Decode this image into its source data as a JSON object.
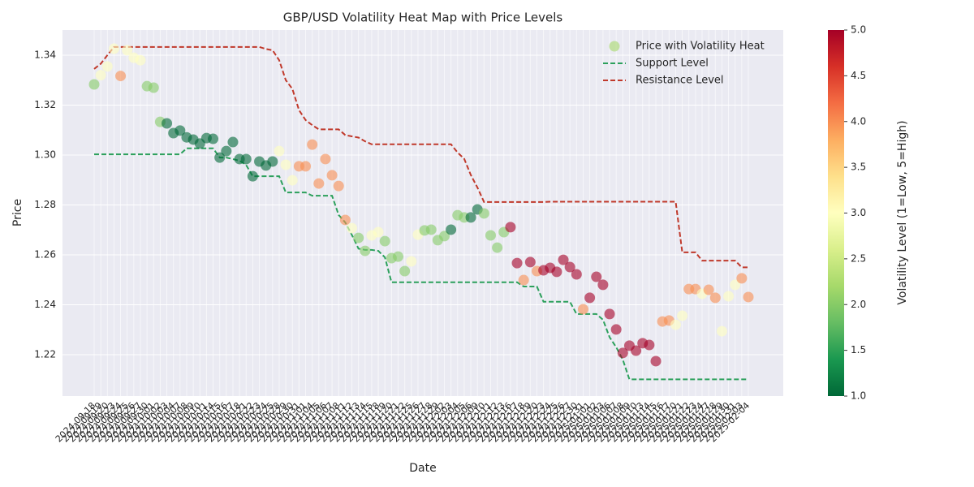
{
  "chart_data": {
    "type": "scatter",
    "title": "GBP/USD Volatility Heat Map with Price Levels",
    "x_label": "Date",
    "y_label": "Price",
    "categories": [
      "2024-09-18",
      "2024-09-19",
      "2024-09-20",
      "2024-09-23",
      "2024-09-24",
      "2024-09-25",
      "2024-09-26",
      "2024-09-27",
      "2024-09-30",
      "2024-10-01",
      "2024-10-02",
      "2024-10-03",
      "2024-10-04",
      "2024-10-07",
      "2024-10-08",
      "2024-10-09",
      "2024-10-10",
      "2024-10-11",
      "2024-10-14",
      "2024-10-15",
      "2024-10-16",
      "2024-10-17",
      "2024-10-18",
      "2024-10-21",
      "2024-10-22",
      "2024-10-23",
      "2024-10-24",
      "2024-10-25",
      "2024-10-28",
      "2024-10-29",
      "2024-10-30",
      "2024-10-31",
      "2024-11-01",
      "2024-11-04",
      "2024-11-05",
      "2024-11-06",
      "2024-11-07",
      "2024-11-08",
      "2024-11-11",
      "2024-11-12",
      "2024-11-13",
      "2024-11-14",
      "2024-11-15",
      "2024-11-18",
      "2024-11-19",
      "2024-11-20",
      "2024-11-21",
      "2024-11-22",
      "2024-11-25",
      "2024-11-26",
      "2024-11-27",
      "2024-11-28",
      "2024-11-29",
      "2024-12-02",
      "2024-12-03",
      "2024-12-04",
      "2024-12-05",
      "2024-12-06",
      "2024-12-09",
      "2024-12-10",
      "2024-12-11",
      "2024-12-12",
      "2024-12-13",
      "2024-12-16",
      "2024-12-17",
      "2024-12-18",
      "2024-12-19",
      "2024-12-20",
      "2024-12-23",
      "2024-12-24",
      "2024-12-25",
      "2024-12-26",
      "2024-12-27",
      "2024-12-30",
      "2024-12-31",
      "2025-01-01",
      "2025-01-02",
      "2025-01-03",
      "2025-01-06",
      "2025-01-07",
      "2025-01-08",
      "2025-01-09",
      "2025-01-10",
      "2025-01-13",
      "2025-01-14",
      "2025-01-15",
      "2025-01-16",
      "2025-01-17",
      "2025-01-20",
      "2025-01-21",
      "2025-01-22",
      "2025-01-23",
      "2025-01-24",
      "2025-01-27",
      "2025-01-28",
      "2025-01-29",
      "2025-01-30",
      "2025-01-31",
      "2025-02-03",
      "2025-02-04"
    ],
    "series": [
      {
        "name": "Price with Volatility Heat",
        "type": "scatter",
        "color": "#a6d96a",
        "values": [
          1.3283,
          1.332,
          1.3355,
          1.3426,
          1.3317,
          1.342,
          1.339,
          1.338,
          1.3276,
          1.327,
          1.3133,
          1.3127,
          1.3088,
          1.3098,
          1.3071,
          1.3062,
          1.3046,
          1.3068,
          1.3065,
          1.299,
          1.3016,
          1.3052,
          1.2984,
          1.2984,
          1.2915,
          1.2974,
          1.2958,
          1.2974,
          1.3016,
          1.2961,
          1.2899,
          1.2955,
          1.2955,
          1.3042,
          1.2886,
          1.2984,
          1.2919,
          1.2876,
          1.274,
          1.2707,
          1.2668,
          1.2616,
          1.2678,
          1.2691,
          1.2655,
          1.2587,
          1.2593,
          1.2535,
          1.2574,
          1.2681,
          1.2698,
          1.2701,
          1.2659,
          1.2675,
          1.2701,
          1.2759,
          1.275,
          1.275,
          1.2782,
          1.2766,
          1.2678,
          1.2629,
          1.2691,
          1.2711,
          1.2567,
          1.2499,
          1.2571,
          1.2535,
          1.2538,
          1.2548,
          1.2532,
          1.258,
          1.2551,
          1.2522,
          1.2382,
          1.2428,
          1.2512,
          1.248,
          1.2363,
          1.2301,
          1.2207,
          1.2236,
          1.2216,
          1.2246,
          1.2239,
          1.2174,
          1.2333,
          1.2337,
          1.232,
          1.2356,
          1.2463,
          1.2463,
          1.2444,
          1.246,
          1.2428,
          1.2294,
          1.2434,
          1.248,
          1.2506,
          1.2431
        ],
        "volatility": [
          2,
          3,
          3,
          3,
          4,
          3,
          3,
          3,
          2,
          2,
          2,
          1,
          1,
          1,
          1,
          1,
          1,
          1,
          1,
          1,
          1,
          1,
          1,
          1,
          1,
          1,
          1,
          1,
          3,
          3,
          3,
          4,
          4,
          4,
          4,
          4,
          4,
          4,
          4,
          3,
          2,
          2,
          3,
          3,
          2,
          2,
          2,
          2,
          3,
          3,
          2,
          2,
          2,
          2,
          1,
          2,
          2,
          1,
          1,
          2,
          2,
          2,
          2,
          5,
          5,
          4,
          5,
          4,
          5,
          5,
          5,
          5,
          5,
          5,
          4,
          5,
          5,
          5,
          5,
          5,
          5,
          5,
          5,
          5,
          5,
          5,
          4,
          4,
          3,
          3,
          4,
          4,
          3,
          4,
          4,
          3,
          3,
          3,
          4,
          4
        ]
      },
      {
        "name": "Support Level",
        "type": "line",
        "color": "#2ca05c",
        "dashed": true,
        "values": [
          1.3003,
          1.3003,
          1.3003,
          1.3003,
          1.3003,
          1.3003,
          1.3003,
          1.3003,
          1.3003,
          1.3003,
          1.3003,
          1.3003,
          1.3003,
          1.3003,
          1.3027,
          1.3027,
          1.3027,
          1.3027,
          1.3027,
          1.299,
          1.299,
          1.2984,
          1.2977,
          1.296,
          1.2915,
          1.2915,
          1.2915,
          1.2915,
          1.2915,
          1.285,
          1.285,
          1.285,
          1.285,
          1.2837,
          1.2837,
          1.2837,
          1.2837,
          1.276,
          1.273,
          1.268,
          1.2625,
          1.262,
          1.262,
          1.2616,
          1.259,
          1.249,
          1.249,
          1.249,
          1.249,
          1.249,
          1.249,
          1.249,
          1.249,
          1.249,
          1.249,
          1.249,
          1.249,
          1.249,
          1.249,
          1.249,
          1.249,
          1.249,
          1.249,
          1.249,
          1.249,
          1.2473,
          1.2473,
          1.2473,
          1.2412,
          1.2412,
          1.2412,
          1.2412,
          1.2412,
          1.2363,
          1.2363,
          1.2363,
          1.2363,
          1.234,
          1.227,
          1.223,
          1.218,
          1.2101,
          1.2101,
          1.2101,
          1.2101,
          1.2101,
          1.2101,
          1.2101,
          1.2101,
          1.2101,
          1.2101,
          1.2101,
          1.2101,
          1.2101,
          1.2101,
          1.2101,
          1.2101,
          1.2101,
          1.2101,
          1.2101
        ]
      },
      {
        "name": "Resistance Level",
        "type": "line",
        "color": "#c0392b",
        "dashed": true,
        "values": [
          1.3345,
          1.3366,
          1.34,
          1.3433,
          1.3433,
          1.3433,
          1.3433,
          1.3433,
          1.3433,
          1.3433,
          1.3433,
          1.3433,
          1.3433,
          1.3433,
          1.3433,
          1.3433,
          1.3433,
          1.3433,
          1.3433,
          1.3433,
          1.3433,
          1.3433,
          1.3433,
          1.3433,
          1.3433,
          1.3433,
          1.3425,
          1.342,
          1.338,
          1.33,
          1.3265,
          1.318,
          1.314,
          1.312,
          1.3103,
          1.3103,
          1.3103,
          1.3103,
          1.308,
          1.3075,
          1.307,
          1.3055,
          1.3043,
          1.3043,
          1.3043,
          1.3043,
          1.3043,
          1.3043,
          1.3043,
          1.3043,
          1.3043,
          1.3043,
          1.3043,
          1.3043,
          1.3043,
          1.301,
          1.2985,
          1.292,
          1.287,
          1.2812,
          1.2812,
          1.2812,
          1.2812,
          1.2812,
          1.2812,
          1.2812,
          1.2812,
          1.2812,
          1.2812,
          1.2813,
          1.2813,
          1.2813,
          1.2813,
          1.2813,
          1.2813,
          1.2813,
          1.2813,
          1.2813,
          1.2813,
          1.2813,
          1.2813,
          1.2813,
          1.2813,
          1.2813,
          1.2813,
          1.2813,
          1.2813,
          1.2813,
          1.2813,
          1.261,
          1.261,
          1.261,
          1.2577,
          1.2577,
          1.2577,
          1.2577,
          1.2577,
          1.2577,
          1.255,
          1.255
        ]
      }
    ],
    "ylim": [
      1.2034,
      1.3501
    ],
    "yticks": [
      1.22,
      1.24,
      1.26,
      1.28,
      {
        "value": 1.3,
        "label": "1.30"
      },
      1.32,
      1.34
    ],
    "grid": true,
    "legend": "upper right",
    "colorbar": {
      "label": "Volatility Level (1=Low, 5=High)",
      "colormap": "RdYlGn_r",
      "lim": [
        1,
        5
      ],
      "ticks": [
        {
          "value": 1,
          "label": "1.0"
        },
        1.5,
        {
          "value": 2,
          "label": "2.0"
        },
        2.5,
        {
          "value": 3,
          "label": "3.0"
        },
        3.5,
        {
          "value": 4,
          "label": "4.0"
        },
        4.5,
        {
          "value": 5,
          "label": "5.0"
        }
      ]
    }
  }
}
